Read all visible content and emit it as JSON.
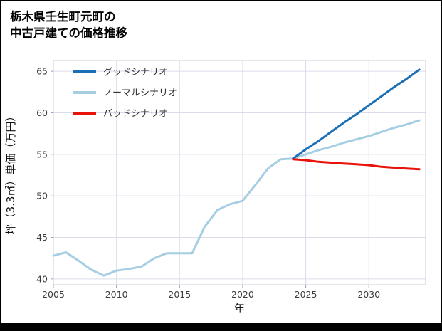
{
  "title": {
    "line1": "栃木県壬生町元町の",
    "line2": "中古戸建ての価格推移"
  },
  "chart_data": {
    "type": "line",
    "title": "栃木県壬生町元町の中古戸建ての価格推移",
    "xlabel": "年",
    "ylabel": "坪（3.3㎡）単価（万円）",
    "xlim": [
      2005,
      2034.5
    ],
    "ylim": [
      39.3,
      66.3
    ],
    "xticks": [
      2005,
      2010,
      2015,
      2020,
      2025,
      2030
    ],
    "yticks": [
      40,
      45,
      50,
      55,
      60,
      65
    ],
    "grid": true,
    "legend_position": "top-left",
    "colors": {
      "good": "#1b6fb5",
      "normal": "#a6cee3",
      "bad": "#e81309",
      "grid": "#dadce9",
      "axis": "#c8ccd8",
      "tick_text": "#3c3c3c"
    },
    "legend": [
      {
        "label": "グッドシナリオ",
        "color": "#1b6fb5"
      },
      {
        "label": "ノーマルシナリオ",
        "color": "#a6cee3"
      },
      {
        "label": "バッドシナリオ",
        "color": "#e81309"
      }
    ],
    "series": [
      {
        "id": "normal",
        "name": "ノーマルシナリオ",
        "color": "#a6cee3",
        "x": [
          2005,
          2006,
          2007,
          2008,
          2009,
          2010,
          2011,
          2012,
          2013,
          2014,
          2015,
          2016,
          2017,
          2018,
          2019,
          2020,
          2021,
          2022,
          2023,
          2024,
          2025,
          2026,
          2027,
          2028,
          2029,
          2030,
          2031,
          2032,
          2033,
          2034
        ],
        "y": [
          42.8,
          43.2,
          42.2,
          41.1,
          40.4,
          41.0,
          41.2,
          41.5,
          42.5,
          43.1,
          43.1,
          43.1,
          46.3,
          48.3,
          49.0,
          49.4,
          51.3,
          53.3,
          54.4,
          54.5,
          55.0,
          55.5,
          55.9,
          56.4,
          56.8,
          57.2,
          57.7,
          58.2,
          58.6,
          59.1
        ]
      },
      {
        "id": "good",
        "name": "グッドシナリオ",
        "color": "#1b6fb5",
        "x": [
          2024,
          2025,
          2026,
          2027,
          2028,
          2029,
          2030,
          2031,
          2032,
          2033,
          2034
        ],
        "y": [
          54.5,
          55.6,
          56.6,
          57.7,
          58.8,
          59.8,
          60.9,
          62.0,
          63.1,
          64.1,
          65.2
        ]
      },
      {
        "id": "bad",
        "name": "バッドシナリオ",
        "color": "#e81309",
        "x": [
          2024,
          2025,
          2026,
          2027,
          2028,
          2029,
          2030,
          2031,
          2032,
          2033,
          2034
        ],
        "y": [
          54.4,
          54.3,
          54.1,
          54.0,
          53.9,
          53.8,
          53.7,
          53.5,
          53.4,
          53.3,
          53.2
        ]
      }
    ]
  }
}
